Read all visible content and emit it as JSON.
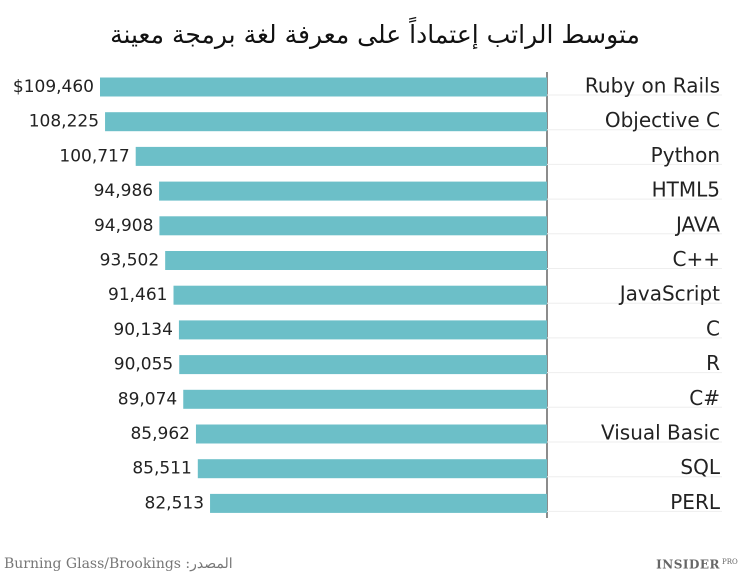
{
  "chart_data": {
    "type": "hbar",
    "title": "متوسط الراتب إعتماداً على معرفة لغة برمجة معينة",
    "categories": [
      "Ruby on Rails",
      "Objective C",
      "Python",
      "HTML5",
      "JAVA",
      "C++",
      "JavaScript",
      "C",
      "R",
      "C#",
      "Visual Basic",
      "SQL",
      "PERL"
    ],
    "values": [
      109460,
      108225,
      100717,
      94986,
      94908,
      93502,
      91461,
      90134,
      90055,
      89074,
      85962,
      85511,
      82513
    ],
    "value_labels": [
      "$109,460",
      "108,225",
      "100,717",
      "94,986",
      "94,908",
      "93,502",
      "91,461",
      "90,134",
      "90,055",
      "89,074",
      "85,962",
      "85,511",
      "82,513"
    ],
    "color": "#6cbfc8",
    "source": "Burning Glass/Brookings :المصدر",
    "logo": "INSIDER",
    "logo_suffix": "PRO"
  }
}
